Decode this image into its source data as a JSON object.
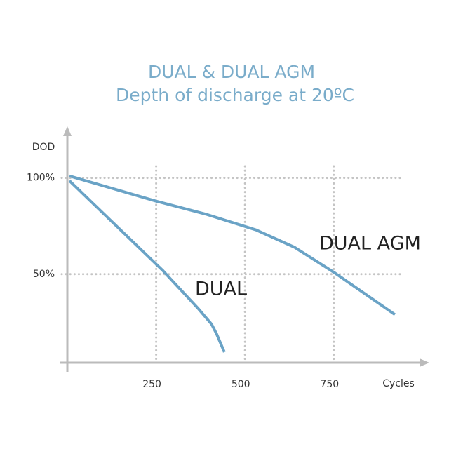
{
  "chart_data": {
    "type": "line",
    "title": "DUAL & DUAL AGM",
    "subtitle": "Depth of discharge at 20ºC",
    "y_label": "DOD",
    "x_label": "Cycles",
    "xlim": [
      0,
      1015
    ],
    "ylim": [
      4,
      125
    ],
    "xticks": [
      250,
      500,
      750
    ],
    "yticks": [
      {
        "value": 100,
        "label": "100%"
      },
      {
        "value": 50,
        "label": "50%"
      }
    ],
    "grid": true,
    "series": [
      {
        "name": "DUAL AGM",
        "color": "#6aa3c6",
        "x": [
          6,
          249,
          393,
          531,
          639,
          750,
          922
        ],
        "values": [
          101,
          88,
          81,
          73,
          64,
          51,
          29
        ]
      },
      {
        "name": "DUAL",
        "color": "#6aa3c6",
        "x": [
          6,
          268,
          369,
          406,
          420,
          442
        ],
        "values": [
          98.5,
          52,
          32,
          24,
          19,
          9.5
        ]
      }
    ]
  }
}
